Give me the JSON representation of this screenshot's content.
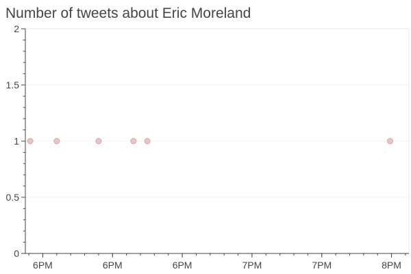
{
  "chart_data": {
    "type": "scatter",
    "title": "Number of tweets about Eric Moreland",
    "xlabel": "",
    "ylabel": "",
    "x_tick_labels": [
      "6PM",
      "6PM",
      "6PM",
      "7PM",
      "7PM",
      "8PM"
    ],
    "x_tick_values": [
      2,
      7,
      12,
      17,
      22,
      27
    ],
    "x_range": [
      0.75,
      28.25
    ],
    "y_tick_labels": [
      "0",
      "0.5",
      "1",
      "1.5",
      "2"
    ],
    "y_tick_values": [
      0,
      0.5,
      1,
      1.5,
      2
    ],
    "ylim": [
      0,
      2
    ],
    "x": [
      1.1,
      3.0,
      6.0,
      8.5,
      9.5,
      26.9
    ],
    "y": [
      1,
      1,
      1,
      1,
      1,
      1
    ],
    "grid": true,
    "colors": {
      "point_fill": "#e8c4c6",
      "point_stroke": "#d9a6aa",
      "grid": "#f3f3f3",
      "axis": "#444444"
    }
  }
}
